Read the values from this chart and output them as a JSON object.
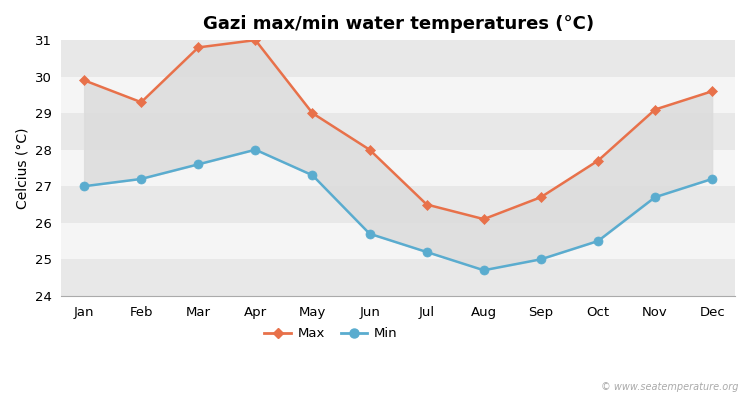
{
  "title": "Gazi max/min water temperatures (°C)",
  "ylabel": "Celcius (°C)",
  "months": [
    "Jan",
    "Feb",
    "Mar",
    "Apr",
    "May",
    "Jun",
    "Jul",
    "Aug",
    "Sep",
    "Oct",
    "Nov",
    "Dec"
  ],
  "max_values": [
    29.9,
    29.3,
    30.8,
    31.0,
    29.0,
    28.0,
    26.5,
    26.1,
    26.7,
    27.7,
    29.1,
    29.6
  ],
  "min_values": [
    27.0,
    27.2,
    27.6,
    28.0,
    27.3,
    25.7,
    25.2,
    24.7,
    25.0,
    25.5,
    26.7,
    27.2
  ],
  "max_color": "#e8714a",
  "min_color": "#5aaccf",
  "fill_color": "#dcdcdc",
  "bg_color": "#f5f5f5",
  "band_color_light": "#f5f5f5",
  "band_color_dark": "#e8e8e8",
  "ylim": [
    24,
    31
  ],
  "yticks": [
    24,
    25,
    26,
    27,
    28,
    29,
    30,
    31
  ],
  "watermark": "© www.seatemperature.org",
  "title_fontsize": 13,
  "axis_fontsize": 10,
  "tick_fontsize": 9.5
}
